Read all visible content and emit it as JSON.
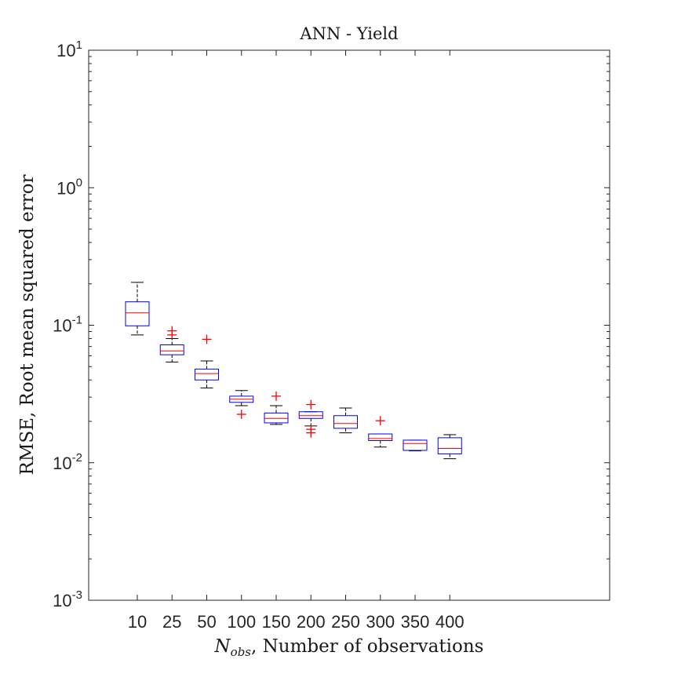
{
  "chart_data": {
    "type": "box",
    "title": "ANN - Yield",
    "xlabel_symbol": "N",
    "xlabel_subscript": "obs",
    "xlabel_rest": ", Number of observations",
    "ylabel": "RMSE, Root mean squared error",
    "yscale": "log",
    "ylim": [
      0.001,
      10
    ],
    "yticks": [
      {
        "value": 0.001,
        "base": "10",
        "exp": "-3"
      },
      {
        "value": 0.01,
        "base": "10",
        "exp": "-2"
      },
      {
        "value": 0.1,
        "base": "10",
        "exp": "-1"
      },
      {
        "value": 1,
        "base": "10",
        "exp": "0"
      },
      {
        "value": 10,
        "base": "10",
        "exp": "1"
      }
    ],
    "categories": [
      "10",
      "25",
      "50",
      "100",
      "150",
      "200",
      "250",
      "300",
      "350",
      "400"
    ],
    "colors": {
      "box": "#0000ff",
      "median": "#ff0000",
      "whisker": "#000000",
      "outlier": "#ff0000",
      "axis": "#262626"
    },
    "boxes": [
      {
        "category": "10",
        "whisker_low": 0.085,
        "q1": 0.099,
        "median": 0.123,
        "q3": 0.148,
        "whisker_high": 0.205,
        "outliers": []
      },
      {
        "category": "25",
        "whisker_low": 0.054,
        "q1": 0.061,
        "median": 0.065,
        "q3": 0.072,
        "whisker_high": 0.08,
        "outliers": [
          0.085,
          0.091
        ]
      },
      {
        "category": "50",
        "whisker_low": 0.035,
        "q1": 0.04,
        "median": 0.0445,
        "q3": 0.048,
        "whisker_high": 0.055,
        "outliers": [
          0.079
        ]
      },
      {
        "category": "100",
        "whisker_low": 0.026,
        "q1": 0.0275,
        "median": 0.029,
        "q3": 0.0305,
        "whisker_high": 0.0335,
        "outliers": [
          0.0225
        ]
      },
      {
        "category": "150",
        "whisker_low": 0.019,
        "q1": 0.0195,
        "median": 0.021,
        "q3": 0.023,
        "whisker_high": 0.026,
        "outliers": [
          0.0305
        ]
      },
      {
        "category": "200",
        "whisker_low": 0.0185,
        "q1": 0.021,
        "median": 0.022,
        "q3": 0.0235,
        "whisker_high": 0.0235,
        "outliers": [
          0.0165,
          0.0175,
          0.0265
        ]
      },
      {
        "category": "250",
        "whisker_low": 0.0165,
        "q1": 0.0178,
        "median": 0.0193,
        "q3": 0.022,
        "whisker_high": 0.025,
        "outliers": []
      },
      {
        "category": "300",
        "whisker_low": 0.013,
        "q1": 0.0145,
        "median": 0.015,
        "q3": 0.0162,
        "whisker_high": 0.0162,
        "outliers": [
          0.0202
        ]
      },
      {
        "category": "350",
        "whisker_low": 0.0122,
        "q1": 0.0123,
        "median": 0.0138,
        "q3": 0.0146,
        "whisker_high": 0.0146,
        "outliers": []
      },
      {
        "category": "400",
        "whisker_low": 0.0107,
        "q1": 0.0116,
        "median": 0.0127,
        "q3": 0.0152,
        "whisker_high": 0.016,
        "outliers": []
      }
    ]
  }
}
